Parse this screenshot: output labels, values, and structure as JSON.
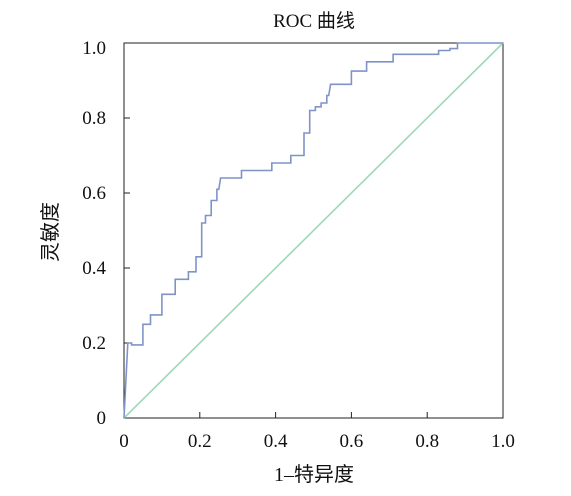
{
  "chart_data": {
    "type": "line",
    "title": "ROC 曲线",
    "xlabel": "1–特异度",
    "ylabel": "灵敏度",
    "xlim": [
      0,
      1
    ],
    "ylim": [
      0,
      1
    ],
    "x_ticks": [
      "0",
      "0.2",
      "0.4",
      "0.6",
      "0.8",
      "1.0"
    ],
    "y_ticks": [
      "0",
      "0.2",
      "0.4",
      "0.6",
      "0.8",
      "1.0"
    ],
    "grid": false,
    "legend": "none",
    "series": [
      {
        "color": "#7f93c9",
        "points": [
          [
            0,
            0
          ],
          [
            0.01,
            0.2
          ],
          [
            0.02,
            0.2
          ],
          [
            0.02,
            0.195
          ],
          [
            0.05,
            0.195
          ],
          [
            0.05,
            0.25
          ],
          [
            0.07,
            0.25
          ],
          [
            0.07,
            0.275
          ],
          [
            0.1,
            0.275
          ],
          [
            0.1,
            0.33
          ],
          [
            0.135,
            0.33
          ],
          [
            0.135,
            0.37
          ],
          [
            0.17,
            0.37
          ],
          [
            0.17,
            0.39
          ],
          [
            0.19,
            0.39
          ],
          [
            0.19,
            0.43
          ],
          [
            0.205,
            0.43
          ],
          [
            0.205,
            0.52
          ],
          [
            0.215,
            0.52
          ],
          [
            0.215,
            0.54
          ],
          [
            0.23,
            0.54
          ],
          [
            0.23,
            0.58
          ],
          [
            0.245,
            0.58
          ],
          [
            0.245,
            0.61
          ],
          [
            0.25,
            0.61
          ],
          [
            0.255,
            0.64
          ],
          [
            0.31,
            0.64
          ],
          [
            0.31,
            0.66
          ],
          [
            0.39,
            0.66
          ],
          [
            0.39,
            0.68
          ],
          [
            0.44,
            0.68
          ],
          [
            0.44,
            0.7
          ],
          [
            0.475,
            0.7
          ],
          [
            0.475,
            0.76
          ],
          [
            0.49,
            0.76
          ],
          [
            0.49,
            0.82
          ],
          [
            0.505,
            0.82
          ],
          [
            0.505,
            0.83
          ],
          [
            0.52,
            0.83
          ],
          [
            0.52,
            0.84
          ],
          [
            0.535,
            0.84
          ],
          [
            0.535,
            0.86
          ],
          [
            0.54,
            0.86
          ],
          [
            0.545,
            0.89
          ],
          [
            0.6,
            0.89
          ],
          [
            0.6,
            0.925
          ],
          [
            0.64,
            0.925
          ],
          [
            0.64,
            0.95
          ],
          [
            0.71,
            0.95
          ],
          [
            0.71,
            0.97
          ],
          [
            0.83,
            0.97
          ],
          [
            0.83,
            0.98
          ],
          [
            0.86,
            0.98
          ],
          [
            0.86,
            0.985
          ],
          [
            0.88,
            0.985
          ],
          [
            0.88,
            1.0
          ],
          [
            1.0,
            1.0
          ]
        ]
      },
      {
        "color": "#9ed8b8",
        "points": [
          [
            0,
            0
          ],
          [
            1,
            1
          ]
        ]
      }
    ]
  }
}
